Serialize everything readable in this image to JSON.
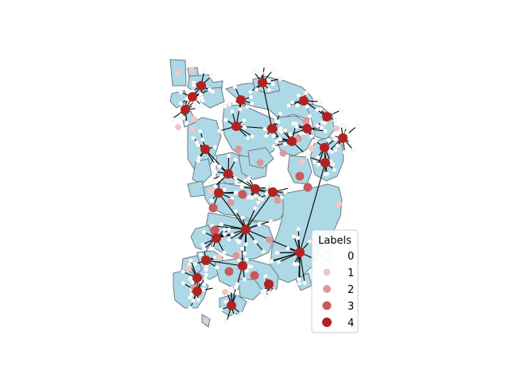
{
  "legend": {
    "title": "Labels",
    "entries": [
      {
        "label": "0",
        "color": "#ffffff"
      },
      {
        "label": "1",
        "color": "#f0c7c7"
      },
      {
        "label": "2",
        "color": "#dc9898"
      },
      {
        "label": "3",
        "color": "#c85a5a"
      },
      {
        "label": "4",
        "color": "#b22222"
      }
    ]
  },
  "colors": {
    "polygon_fill": "#add8e6",
    "polygon_edge": "#6b7b85",
    "edge": "#000000"
  }
}
